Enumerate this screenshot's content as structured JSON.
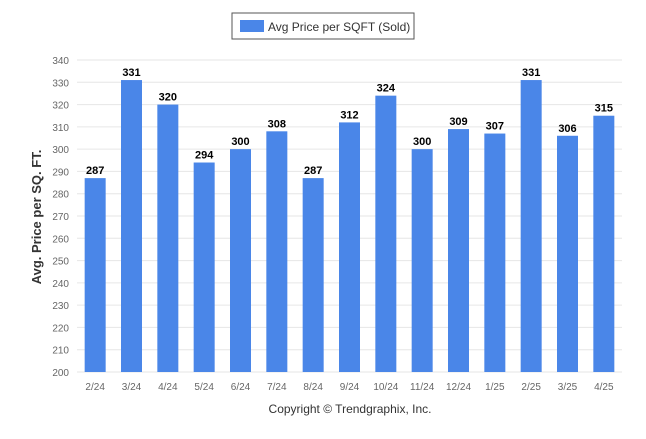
{
  "colors": {
    "bar": "#4a86e8",
    "grid": "#e6e6e6",
    "axis_text": "#666666",
    "label_text": "#000000",
    "ylabel_text": "#333333",
    "legend_border": "#555555"
  },
  "chart_data": {
    "type": "bar",
    "title": "",
    "xlabel": "",
    "ylabel": "Avg. Price per SQ. FT.",
    "categories": [
      "2/24",
      "3/24",
      "4/24",
      "5/24",
      "6/24",
      "7/24",
      "8/24",
      "9/24",
      "10/24",
      "11/24",
      "12/24",
      "1/25",
      "2/25",
      "3/25",
      "4/25"
    ],
    "series": [
      {
        "name": "Avg Price per SQFT (Sold)",
        "values": [
          287,
          331,
          320,
          294,
          300,
          308,
          287,
          312,
          324,
          300,
          309,
          307,
          331,
          306,
          315
        ]
      }
    ],
    "ylim": [
      200,
      340
    ],
    "yticks": [
      200,
      210,
      220,
      230,
      240,
      250,
      260,
      270,
      280,
      290,
      300,
      310,
      320,
      330,
      340
    ],
    "grid": true,
    "legend": "top-center",
    "data_labels": true
  },
  "footer": {
    "copyright": "Copyright © Trendgraphix, Inc."
  }
}
